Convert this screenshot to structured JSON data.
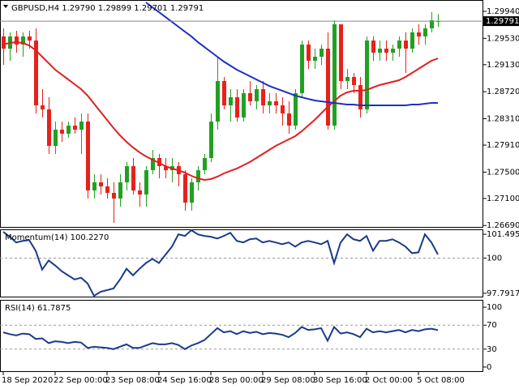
{
  "chart_data": [
    {
      "type": "candlestick",
      "title": "GBPUSD,H4  1.29790 1.29899 1.29701 1.29791",
      "categories": [
        "18 Sep 2020",
        null,
        null,
        null,
        null,
        null,
        null,
        null,
        "22 Sep 00:00",
        null,
        null,
        null,
        null,
        null,
        null,
        null,
        "23 Sep 08:00",
        null,
        null,
        null,
        null,
        null,
        null,
        null,
        "24 Sep 16:00",
        null,
        null,
        null,
        null,
        null,
        null,
        null,
        "28 Sep 00:00",
        null,
        null,
        null,
        null,
        null,
        null,
        null,
        "29 Sep 08:00",
        null,
        null,
        null,
        null,
        null,
        null,
        null,
        "30 Sep 16:00",
        null,
        null,
        null,
        null,
        null,
        null,
        null,
        "2 Oct 00:00",
        null,
        null,
        null,
        null,
        null,
        null,
        null,
        "5 Oct 08:00",
        null,
        null,
        null
      ],
      "open": [
        1.29559,
        1.29374,
        1.29559,
        1.29436,
        1.29559,
        1.29497,
        1.28513,
        1.28452,
        1.27898,
        1.28144,
        1.28083,
        1.28206,
        1.28144,
        1.28267,
        1.27222,
        1.27345,
        1.27283,
        1.27185,
        1.27099,
        1.27345,
        1.27591,
        1.27222,
        1.2716,
        1.27529,
        1.27714,
        1.27591,
        1.27529,
        1.27591,
        1.27468,
        1.27037,
        1.27345,
        1.27529,
        1.27714,
        1.28267,
        1.28882,
        1.28513,
        1.28636,
        1.28329,
        1.28698,
        1.28575,
        1.28759,
        1.28513,
        1.28575,
        1.28513,
        1.2839,
        1.28206,
        1.28698,
        1.29436,
        1.2919,
        1.29251,
        1.29374,
        1.28206,
        1.29743,
        1.28882,
        1.28944,
        1.28821,
        1.28452,
        1.29497,
        1.29313,
        1.29374,
        1.29313,
        1.29374,
        1.29497,
        1.29374,
        1.2962,
        1.29559,
        1.29682,
        1.2979
      ],
      "high": [
        1.29682,
        1.2962,
        1.29645,
        1.2962,
        1.29645,
        1.29682,
        1.28759,
        1.28636,
        1.28267,
        1.28267,
        1.28267,
        1.28329,
        1.2839,
        1.2839,
        1.27468,
        1.27468,
        1.27406,
        1.27345,
        1.27468,
        1.27652,
        1.27714,
        1.27345,
        1.27591,
        1.27837,
        1.27775,
        1.27714,
        1.27714,
        1.27652,
        1.27529,
        1.27406,
        1.27591,
        1.27775,
        1.2839,
        1.29251,
        1.28944,
        1.28759,
        1.28759,
        1.28759,
        1.28882,
        1.28821,
        1.28882,
        1.28698,
        1.28698,
        1.28636,
        1.28575,
        1.28759,
        1.29497,
        1.29497,
        1.29374,
        1.29436,
        1.2962,
        1.29805,
        1.29743,
        1.29067,
        1.29005,
        1.28944,
        1.29559,
        1.29559,
        1.29497,
        1.29497,
        1.29436,
        1.29559,
        1.2962,
        1.29682,
        1.29743,
        1.29743,
        1.29928,
        1.29899
      ],
      "low": [
        1.29128,
        1.2919,
        1.29313,
        1.29251,
        1.29374,
        1.2839,
        1.28329,
        1.27775,
        1.27775,
        1.2796,
        1.28021,
        1.28083,
        1.27775,
        1.27099,
        1.27099,
        1.2716,
        1.27099,
        1.2673,
        1.26976,
        1.27222,
        1.2716,
        1.26976,
        1.26976,
        1.27468,
        1.27406,
        1.27406,
        1.27345,
        1.27283,
        1.26914,
        1.26914,
        1.27222,
        1.27468,
        1.27652,
        1.28144,
        1.28452,
        1.28267,
        1.28267,
        1.28267,
        1.28513,
        1.28452,
        1.2839,
        1.2839,
        1.2839,
        1.28206,
        1.28083,
        1.28144,
        1.28636,
        1.29067,
        1.29067,
        1.29128,
        1.28144,
        1.28144,
        1.28759,
        1.28759,
        1.28698,
        1.28329,
        1.2839,
        1.2919,
        1.2919,
        1.2919,
        1.2919,
        1.29251,
        1.29005,
        1.29313,
        1.29436,
        1.29436,
        1.2962,
        1.29701
      ],
      "close": [
        1.29374,
        1.29559,
        1.29436,
        1.29559,
        1.29497,
        1.28513,
        1.28452,
        1.27898,
        1.28144,
        1.28083,
        1.28206,
        1.28144,
        1.28267,
        1.27222,
        1.27345,
        1.27283,
        1.27185,
        1.27099,
        1.27345,
        1.27591,
        1.27222,
        1.2716,
        1.27529,
        1.27714,
        1.27591,
        1.27529,
        1.27591,
        1.27468,
        1.27037,
        1.27345,
        1.27529,
        1.27714,
        1.28267,
        1.28882,
        1.28513,
        1.28636,
        1.28329,
        1.28698,
        1.28575,
        1.28759,
        1.28513,
        1.28575,
        1.28513,
        1.2839,
        1.28206,
        1.28698,
        1.29436,
        1.2919,
        1.29251,
        1.29374,
        1.28206,
        1.29743,
        1.28882,
        1.28944,
        1.28821,
        1.28452,
        1.29497,
        1.29313,
        1.29374,
        1.29313,
        1.29374,
        1.29497,
        1.29374,
        1.2962,
        1.29559,
        1.29682,
        1.29805,
        1.29791
      ],
      "up_color": "#22a022",
      "down_color": "#e8211b",
      "lines": [
        {
          "color": "#e02020",
          "values": [
            1.29436,
            1.2946,
            1.29473,
            1.2946,
            1.29423,
            1.2935,
            1.29251,
            1.29153,
            1.29054,
            1.28981,
            1.28907,
            1.28833,
            1.28759,
            1.28661,
            1.28538,
            1.28415,
            1.28292,
            1.28169,
            1.28058,
            1.2796,
            1.27874,
            1.278,
            1.27738,
            1.27689,
            1.2764,
            1.27591,
            1.27554,
            1.27529,
            1.27492,
            1.27443,
            1.27406,
            1.27382,
            1.27394,
            1.27431,
            1.2748,
            1.27517,
            1.27554,
            1.27603,
            1.27652,
            1.27714,
            1.27775,
            1.27837,
            1.27898,
            1.27947,
            1.27997,
            1.28046,
            1.2812,
            1.28206,
            1.28292,
            1.2839,
            1.28489,
            1.28575,
            1.28661,
            1.2871,
            1.28735,
            1.28735,
            1.28747,
            1.28784,
            1.28821,
            1.28845,
            1.2887,
            1.28894,
            1.28944,
            1.29005,
            1.29067,
            1.29128,
            1.2919,
            1.29226
          ]
        },
        {
          "color": "#2030c0",
          "values": [
            null,
            null,
            null,
            null,
            null,
            null,
            null,
            null,
            null,
            null,
            null,
            null,
            null,
            null,
            null,
            null,
            null,
            null,
            null,
            null,
            null,
            null,
            1.30075,
            1.30001,
            1.29928,
            1.29854,
            1.2978,
            1.29706,
            1.29632,
            1.29559,
            1.29473,
            1.29399,
            1.29325,
            1.29251,
            1.29177,
            1.29116,
            1.29054,
            1.29005,
            1.28956,
            1.28907,
            1.28857,
            1.28808,
            1.28771,
            1.28735,
            1.28698,
            1.28661,
            1.28636,
            1.28611,
            1.28587,
            1.28575,
            1.28562,
            1.2855,
            1.28538,
            1.28525,
            1.28525,
            1.28513,
            1.28513,
            1.28513,
            1.28513,
            1.28513,
            1.28513,
            1.28513,
            1.28513,
            1.28525,
            1.28525,
            1.28538,
            1.2855,
            1.2855
          ]
        }
      ],
      "last_price": 1.29791,
      "ylim": [
        1.26656,
        1.30112
      ],
      "yticks": [
        {
          "value": 1.2994,
          "label": "1.29940"
        },
        {
          "value": 1.2953,
          "label": "1.29530"
        },
        {
          "value": 1.2913,
          "label": "1.29130"
        },
        {
          "value": 1.2872,
          "label": "1.28720"
        },
        {
          "value": 1.2831,
          "label": "1.28310"
        },
        {
          "value": 1.2791,
          "label": "1.27910"
        },
        {
          "value": 1.275,
          "label": "1.27500"
        },
        {
          "value": 1.271,
          "label": "1.27100"
        },
        {
          "value": 1.2669,
          "label": "1.26690"
        }
      ]
    },
    {
      "type": "line",
      "title": "Momentum(14) 100.2270",
      "color": "#1a3a8a",
      "values": [
        101.65,
        101.34,
        100.98,
        101.08,
        101.13,
        100.46,
        99.28,
        99.85,
        99.54,
        99.18,
        98.92,
        98.66,
        98.77,
        98.41,
        97.63,
        97.89,
        97.99,
        98.1,
        98.66,
        99.33,
        98.92,
        99.33,
        99.69,
        99.95,
        99.69,
        100.21,
        100.72,
        101.49,
        101.39,
        101.75,
        101.49,
        101.39,
        101.34,
        101.23,
        101.39,
        101.59,
        101.08,
        100.98,
        101.18,
        101.23,
        100.98,
        101.08,
        100.98,
        100.87,
        100.98,
        100.72,
        100.98,
        101.08,
        100.98,
        100.87,
        101.08,
        99.69,
        100.98,
        101.49,
        101.18,
        101.08,
        101.39,
        100.46,
        101.08,
        101.08,
        101.18,
        100.98,
        100.72,
        100.31,
        100.36,
        101.49,
        100.98,
        100.227
      ],
      "levels": [
        100
      ],
      "ylim": [
        97.534,
        101.804
      ],
      "yticks": [
        101.4951,
        100,
        97.7917
      ]
    },
    {
      "type": "line",
      "title": "RSI(14) 61.7875",
      "color": "#1a3a8a",
      "values": [
        58,
        55,
        53,
        56,
        55,
        47,
        48,
        40,
        43,
        42,
        40,
        42,
        41,
        32,
        34,
        33,
        32,
        30,
        34,
        38,
        32,
        32,
        36,
        40,
        38,
        38,
        40,
        37,
        30,
        36,
        40,
        45,
        55,
        65,
        58,
        60,
        55,
        60,
        57,
        59,
        55,
        57,
        56,
        54,
        50,
        57,
        67,
        62,
        63,
        65,
        44,
        67,
        56,
        58,
        55,
        50,
        64,
        58,
        60,
        58,
        60,
        62,
        58,
        62,
        60,
        63,
        64,
        61.7875
      ],
      "levels": [
        70,
        30
      ],
      "ylim": [
        -8.2,
        112.3
      ],
      "yticks": [
        100,
        70,
        30,
        0
      ]
    }
  ]
}
